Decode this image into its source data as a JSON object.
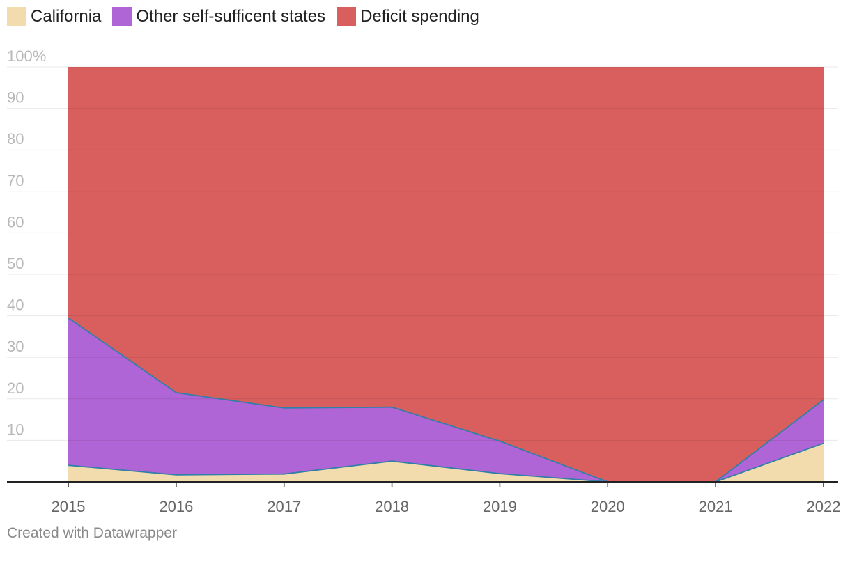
{
  "chart_data": {
    "type": "area",
    "stacked": true,
    "x": [
      "2015",
      "2016",
      "2017",
      "2018",
      "2019",
      "2020",
      "2021",
      "2022"
    ],
    "series": [
      {
        "name": "California",
        "color": "#f2dcae",
        "values": [
          4,
          1.7,
          1.9,
          5,
          2,
          0,
          0,
          9.3
        ]
      },
      {
        "name": "Other self-sufficent states",
        "color": "#b065d6",
        "values": [
          35.5,
          19.8,
          15.9,
          13,
          7.8,
          0,
          0,
          10.5
        ]
      },
      {
        "name": "Deficit spending",
        "color": "#d95f5f",
        "values": [
          60.5,
          78.5,
          82.2,
          82,
          90.2,
          100,
          100,
          80.2
        ]
      }
    ],
    "ylim": [
      0,
      100
    ],
    "yticks": [
      "10",
      "20",
      "30",
      "40",
      "50",
      "60",
      "70",
      "80",
      "90",
      "100%"
    ],
    "grid": true,
    "legend": "top-left"
  },
  "footer": {
    "credit": "Created with Datawrapper"
  }
}
